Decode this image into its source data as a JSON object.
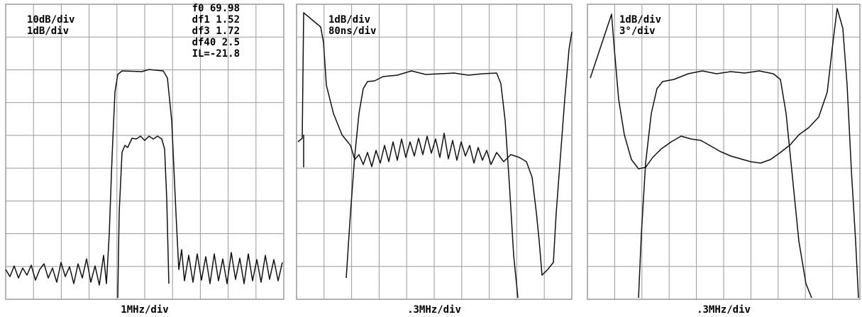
{
  "panels": [
    {
      "labels": [
        "10dB/div",
        "1dB/div"
      ],
      "readout": [
        "f0 69.98",
        "df1 1.52",
        "df3 1.72",
        "df40 2.5",
        "IL=-21.8"
      ],
      "footer": "1MHz/div"
    },
    {
      "labels": [
        "1dB/div",
        "80ns/div"
      ],
      "footer": ".3MHz/div"
    },
    {
      "labels": [
        "1dB/div",
        "3°/div"
      ],
      "footer": ".3MHz/div"
    }
  ]
}
